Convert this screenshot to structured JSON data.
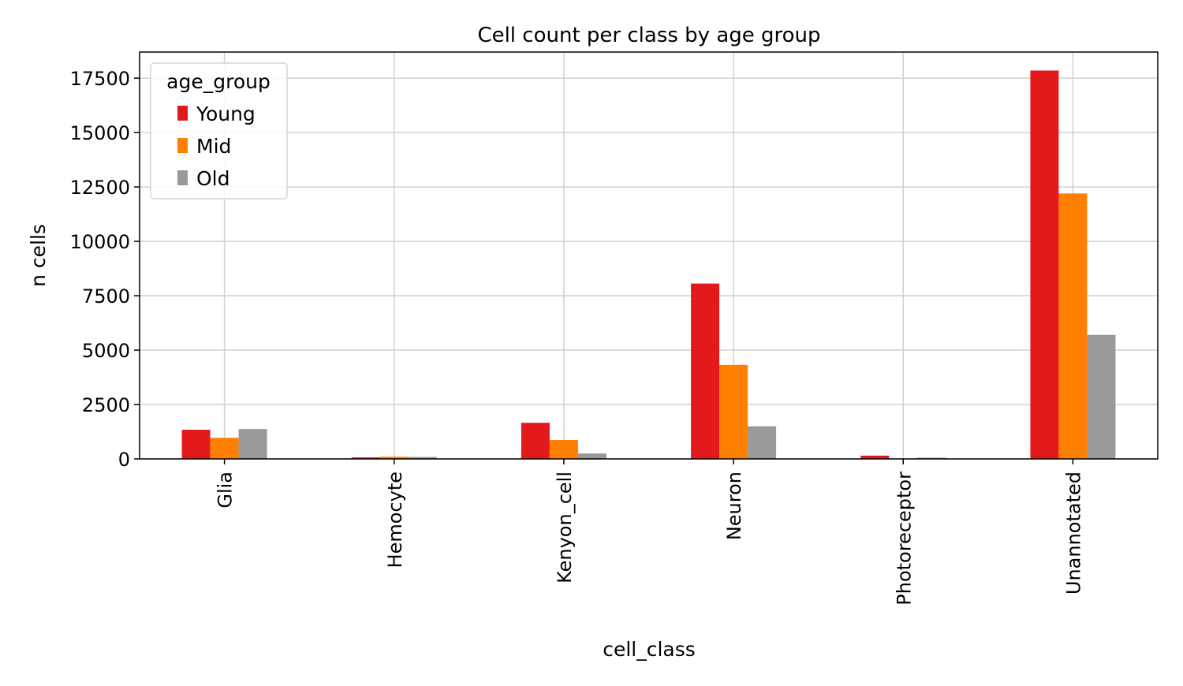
{
  "chart_data": {
    "type": "bar",
    "title": "Cell count per class by age group",
    "xlabel": "cell_class",
    "ylabel": "n cells",
    "categories": [
      "Glia",
      "Hemocyte",
      "Kenyon_cell",
      "Neuron",
      "Photoreceptor",
      "Unannotated"
    ],
    "series": [
      {
        "name": "Young",
        "color": "#e31a1c",
        "values": [
          1340,
          70,
          1660,
          8060,
          150,
          17850
        ]
      },
      {
        "name": "Mid",
        "color": "#ff7f00",
        "values": [
          970,
          100,
          870,
          4320,
          20,
          12200
        ]
      },
      {
        "name": "Old",
        "color": "#999999",
        "values": [
          1370,
          90,
          250,
          1500,
          60,
          5700
        ]
      }
    ],
    "ylim": [
      0,
      18700
    ],
    "yticks": [
      0,
      2500,
      5000,
      7500,
      10000,
      12500,
      15000,
      17500
    ],
    "ytick_labels": [
      "0",
      "2500",
      "5000",
      "7500",
      "10000",
      "12500",
      "15000",
      "17500"
    ],
    "grid": true,
    "legend": {
      "title": "age_group",
      "position": "top-left"
    }
  }
}
